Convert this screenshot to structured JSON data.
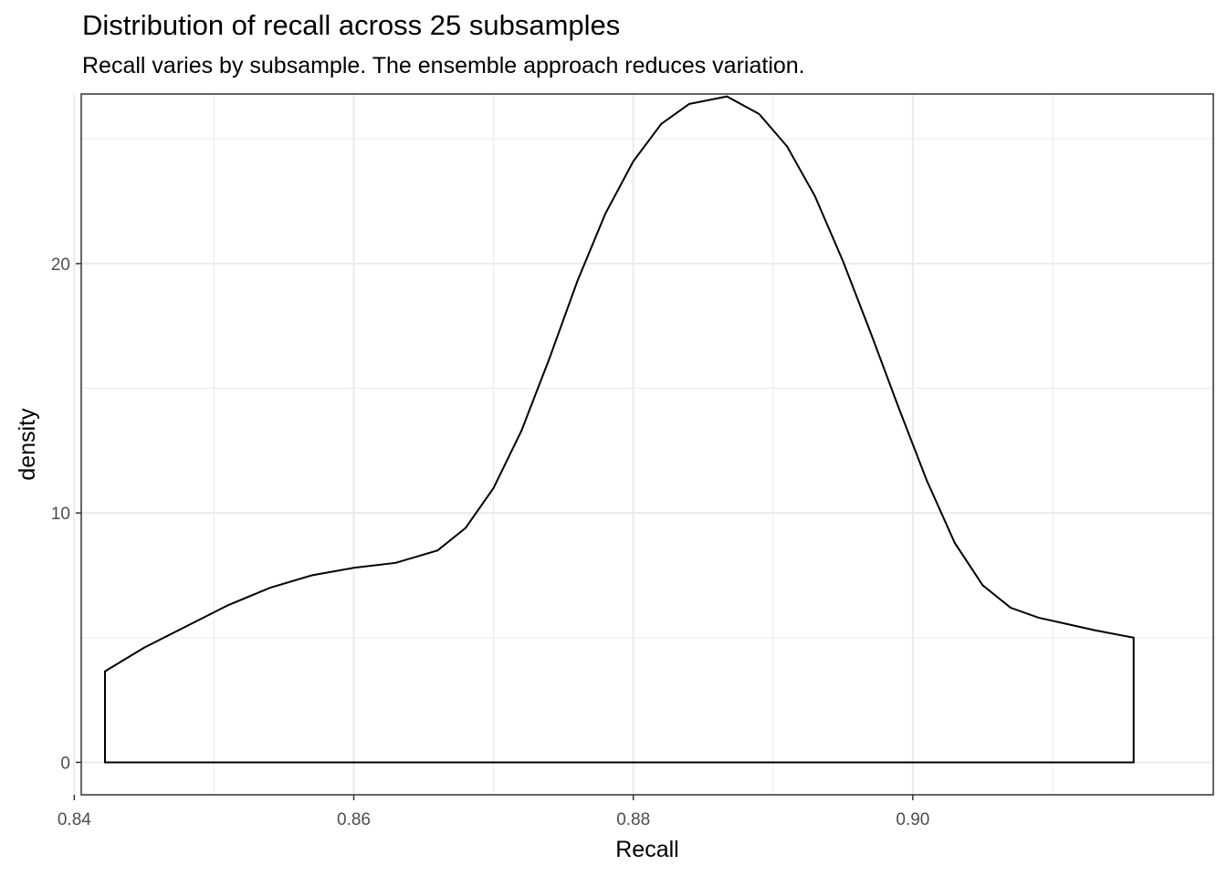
{
  "chart_data": {
    "type": "area",
    "title": "Distribution of recall across 25 subsamples",
    "subtitle": "Recall varies by subsample. The ensemble approach reduces variation.",
    "xlabel": "Recall",
    "ylabel": "density",
    "xlim": [
      0.8405,
      0.9215
    ],
    "ylim": [
      -1.3,
      26.8
    ],
    "x_ticks": [
      0.84,
      0.86,
      0.88,
      0.9
    ],
    "x_tick_labels": [
      "0.84",
      "0.86",
      "0.88",
      "0.90"
    ],
    "y_ticks": [
      0,
      10,
      20
    ],
    "y_tick_labels": [
      "0",
      "10",
      "20"
    ],
    "grid": true,
    "fill": "none",
    "line_color": "#000000",
    "x": [
      0.8422,
      0.845,
      0.848,
      0.851,
      0.854,
      0.857,
      0.86,
      0.863,
      0.866,
      0.868,
      0.87,
      0.872,
      0.874,
      0.876,
      0.878,
      0.88,
      0.882,
      0.884,
      0.8867,
      0.889,
      0.891,
      0.893,
      0.895,
      0.897,
      0.899,
      0.901,
      0.903,
      0.905,
      0.907,
      0.909,
      0.911,
      0.913,
      0.9158
    ],
    "y": [
      3.65,
      4.6,
      5.45,
      6.3,
      7.0,
      7.5,
      7.8,
      8.0,
      8.5,
      9.4,
      11.0,
      13.3,
      16.2,
      19.3,
      22.0,
      24.1,
      25.6,
      26.4,
      26.7,
      26.0,
      24.7,
      22.7,
      20.1,
      17.2,
      14.2,
      11.3,
      8.8,
      7.1,
      6.2,
      5.8,
      5.55,
      5.3,
      5.0
    ]
  }
}
